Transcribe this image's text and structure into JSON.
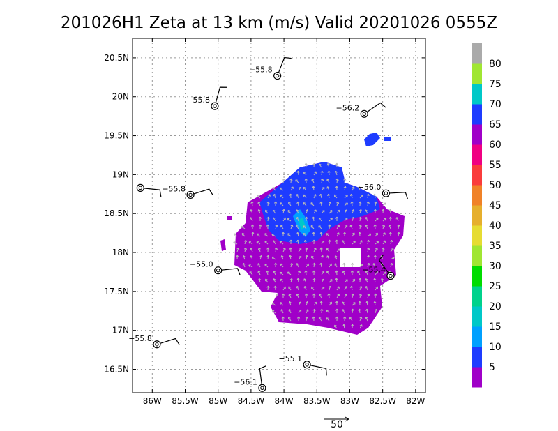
{
  "chart_data": {
    "type": "map",
    "title": "201026H1 Zeta at 13 km (m/s) Valid 20201026 0555Z",
    "x_ticks": [
      "86W",
      "85.5W",
      "85W",
      "84.5W",
      "84W",
      "83.5W",
      "83W",
      "82.5W",
      "82W"
    ],
    "x_values": [
      -86,
      -85.5,
      -85,
      -84.5,
      -84,
      -83.5,
      -83,
      -82.5,
      -82
    ],
    "y_ticks": [
      "20.5N",
      "20N",
      "19.5N",
      "19N",
      "18.5N",
      "18N",
      "17.5N",
      "17N",
      "16.5N"
    ],
    "y_values": [
      20.5,
      20,
      19.5,
      19,
      18.5,
      18,
      17.5,
      17,
      16.5
    ],
    "xlim": [
      -86.3,
      -81.85
    ],
    "ylim": [
      16.2,
      20.75
    ],
    "colorbar": {
      "labels": [
        "5",
        "10",
        "15",
        "20",
        "25",
        "30",
        "35",
        "40",
        "45",
        "50",
        "55",
        "60",
        "65",
        "70",
        "75",
        "80"
      ],
      "colors": [
        "#a000c8",
        "#1e3cff",
        "#00a0ff",
        "#00c8c8",
        "#00d28c",
        "#00dc00",
        "#a0e632",
        "#e6dc32",
        "#e6af2d",
        "#f08228",
        "#fa3c3c",
        "#f00082",
        "#a000c8",
        "#1e3cff",
        "#00c8c8",
        "#a0e632",
        "#aaaaaa"
      ]
    },
    "vector_reference": "50",
    "observations": [
      {
        "label": "−55.8",
        "lon": -84.1,
        "lat": 20.27
      },
      {
        "label": "−55.8",
        "lon": -85.05,
        "lat": 19.88
      },
      {
        "label": "−56.2",
        "lon": -82.78,
        "lat": 19.78
      },
      {
        "label": "",
        "lon": -86.18,
        "lat": 18.83
      },
      {
        "label": "−55.8",
        "lon": -85.42,
        "lat": 18.74
      },
      {
        "label": "−56.0",
        "lon": -82.45,
        "lat": 18.76
      },
      {
        "label": "−55.0",
        "lon": -85.0,
        "lat": 17.77
      },
      {
        "label": "−55.4",
        "lon": -82.38,
        "lat": 17.7
      },
      {
        "label": "−55.8",
        "lon": -85.93,
        "lat": 16.82
      },
      {
        "label": "−55.1",
        "lon": -83.65,
        "lat": 16.56
      },
      {
        "label": "−56.1",
        "lon": -84.33,
        "lat": 16.26
      }
    ]
  }
}
